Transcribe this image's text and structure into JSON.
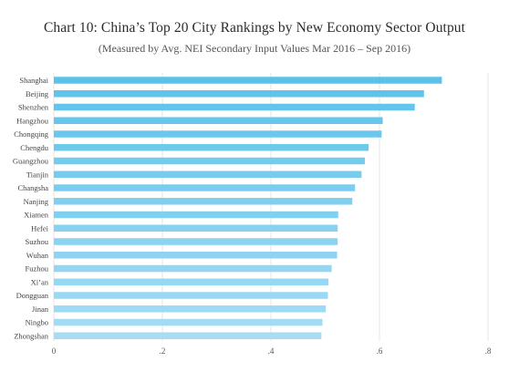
{
  "title": "Chart 10: China’s Top 20 City Rankings by New Economy Sector Output",
  "subtitle": "(Measured by Avg. NEI Secondary Input Values Mar 2016 – Sep 2016)",
  "chart_data": {
    "type": "bar",
    "orientation": "horizontal",
    "categories": [
      "Shanghai",
      "Beijing",
      "Shenzhen",
      "Hangzhou",
      "Chongqing",
      "Chengdu",
      "Guangzhou",
      "Tianjin",
      "Changsha",
      "Nanjing",
      "Xiamen",
      "Hefei",
      "Suzhou",
      "Wuhan",
      "Fuzhou",
      "Xi’an",
      "Dongguan",
      "Jinan",
      "Ningbo",
      "Zhongshan"
    ],
    "values": [
      0.715,
      0.682,
      0.665,
      0.606,
      0.604,
      0.58,
      0.573,
      0.567,
      0.555,
      0.55,
      0.524,
      0.523,
      0.523,
      0.522,
      0.512,
      0.506,
      0.505,
      0.501,
      0.495,
      0.493
    ],
    "xlim": [
      0,
      0.8
    ],
    "xticks": [
      0,
      0.2,
      0.4,
      0.6,
      0.8
    ],
    "xtick_labels": [
      "0",
      ".2",
      ".4",
      ".6",
      ".8"
    ],
    "grid": true,
    "colors": {
      "bar_start": "#5bc2ea",
      "bar_end": "#a6ddf5",
      "grid": "#e6e6e6"
    }
  }
}
